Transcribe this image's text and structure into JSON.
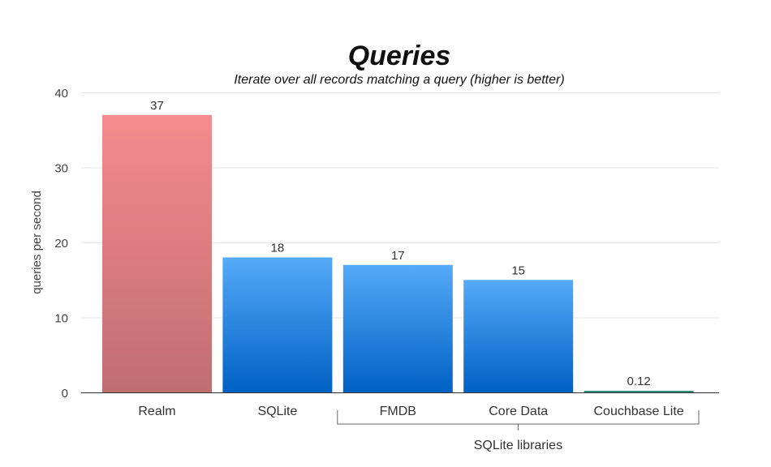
{
  "chart_data": {
    "type": "bar",
    "title": "Queries",
    "subtitle": "Iterate over all records matching a query (higher is better)",
    "ylabel": "queries per second",
    "xlabel": "",
    "ylim": [
      0,
      40
    ],
    "yticks": [
      0,
      10,
      20,
      30,
      40
    ],
    "grid": true,
    "categories": [
      "Realm",
      "SQLite",
      "FMDB",
      "Core Data",
      "Couchbase Lite"
    ],
    "values": [
      37,
      18,
      17,
      15,
      0.12
    ],
    "value_labels": [
      "37",
      "18",
      "17",
      "15",
      "0.12"
    ],
    "bar_colors": [
      "red-gradient",
      "blue-gradient",
      "blue-gradient",
      "blue-gradient",
      "teal"
    ],
    "colors": {
      "realm_top": "#f48b8f",
      "realm_bottom": "#c06e70",
      "blue_top": "#55aaf8",
      "blue_bottom": "#0061c4",
      "couchbase": "#2e8b74"
    },
    "group_annotation": {
      "label": "SQLite libraries",
      "from_category": "FMDB",
      "to_category": "Couchbase Lite"
    }
  }
}
